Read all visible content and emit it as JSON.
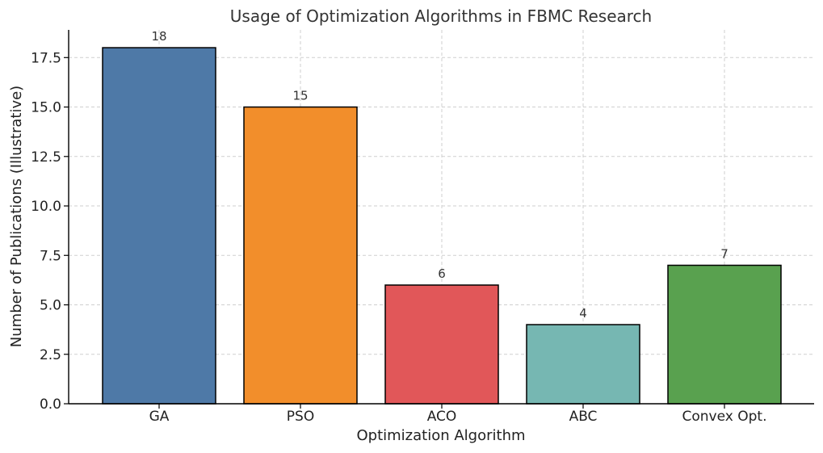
{
  "chart_data": {
    "type": "bar",
    "title": "Usage of Optimization Algorithms in FBMC Research",
    "xlabel": "Optimization Algorithm",
    "ylabel": "Number of Publications (Illustrative)",
    "categories": [
      "GA",
      "PSO",
      "ACO",
      "ABC",
      "Convex Opt."
    ],
    "values": [
      18,
      15,
      6,
      4,
      7
    ],
    "data_labels": [
      "18",
      "15",
      "6",
      "4",
      "7"
    ],
    "colors": [
      "#4e79a7",
      "#f28e2b",
      "#e15759",
      "#76b7b2",
      "#59a14f"
    ],
    "ylim": [
      0,
      18.9
    ],
    "yticks": [
      0.0,
      2.5,
      5.0,
      7.5,
      10.0,
      12.5,
      15.0,
      17.5
    ],
    "ytick_labels": [
      "0.0",
      "2.5",
      "5.0",
      "7.5",
      "10.0",
      "12.5",
      "15.0",
      "17.5"
    ],
    "grid": true
  }
}
